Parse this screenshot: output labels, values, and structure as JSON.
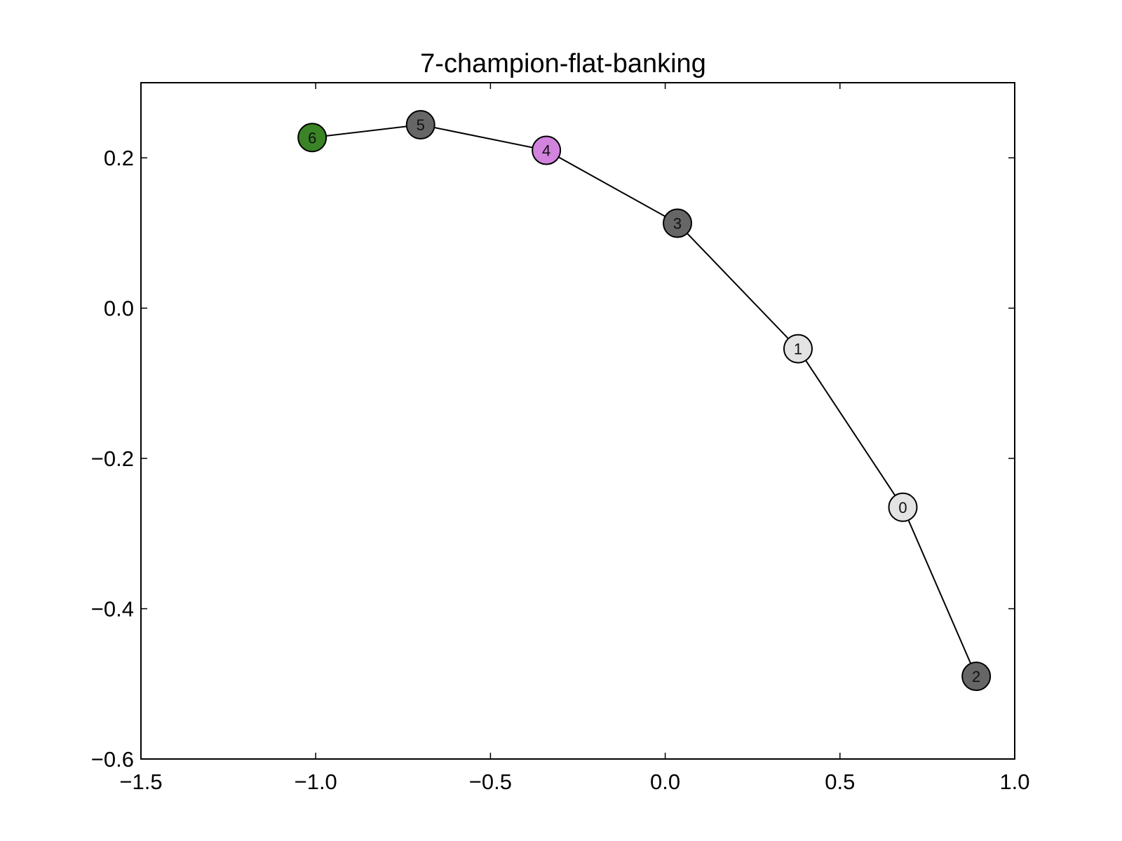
{
  "chart_data": {
    "type": "scatter",
    "title": "7-champion-flat-banking",
    "xlabel": "",
    "ylabel": "",
    "xlim": [
      -1.5,
      1.0
    ],
    "ylim": [
      -0.6,
      0.3
    ],
    "xticks": [
      -1.5,
      -1.0,
      -0.5,
      0.0,
      0.5,
      1.0
    ],
    "yticks": [
      -0.6,
      -0.4,
      -0.2,
      0.0,
      0.2
    ],
    "xtick_labels": [
      "−1.5",
      "−1.0",
      "−0.5",
      "0.0",
      "0.5",
      "1.0"
    ],
    "ytick_labels": [
      "−0.6",
      "−0.4",
      "−0.2",
      "0.0",
      "0.2"
    ],
    "grid": false,
    "connector_order": [
      "6",
      "5",
      "4",
      "3",
      "1",
      "0",
      "2"
    ],
    "nodes": [
      {
        "label": "0",
        "x": 0.68,
        "y": -0.265,
        "color": "#e3e3e3"
      },
      {
        "label": "1",
        "x": 0.38,
        "y": -0.054,
        "color": "#e3e3e3"
      },
      {
        "label": "2",
        "x": 0.89,
        "y": -0.49,
        "color": "#666666"
      },
      {
        "label": "3",
        "x": 0.035,
        "y": 0.113,
        "color": "#666666"
      },
      {
        "label": "4",
        "x": -0.34,
        "y": 0.21,
        "color": "#d183dd"
      },
      {
        "label": "5",
        "x": -0.7,
        "y": 0.244,
        "color": "#666666"
      },
      {
        "label": "6",
        "x": -1.01,
        "y": 0.227,
        "color": "#3a8425"
      }
    ],
    "line_color": "#000000"
  }
}
